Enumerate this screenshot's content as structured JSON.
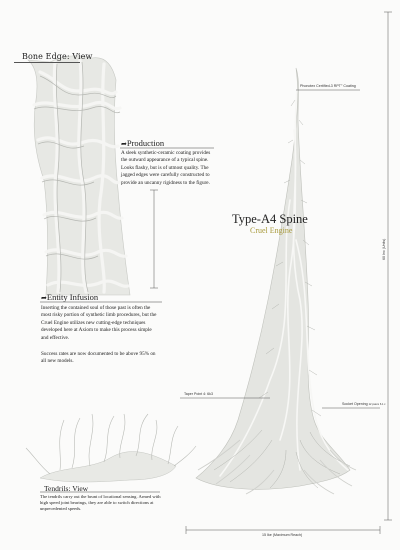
{
  "bone_edge": {
    "title": "Bone Edge: View"
  },
  "production": {
    "icon": "arrow-icon",
    "heading": "Production",
    "text": "A sleek synthetic-ceramic coating provides the outward appearance of a typical spine. Looks flashy, but is of utmost quality. The jagged edges were carefully constructed to provide an uncanny rigidness to the figure."
  },
  "entity": {
    "icon": "arrow-icon",
    "heading": "Entity Infusion",
    "text": "Inserting the contained soul of those past is often the most risky portion of synthetic limb procedures, but the Cruel Engine utilizes new cutting-edge techniques developed here at Axiom to make this process simple and effective.",
    "text2": "Success rates are now documented to be above 95% on all new models."
  },
  "product": {
    "title": "Type-A4 Spine",
    "subtitle": "Cruel Engine"
  },
  "annotations": {
    "coating": "Phonotex Certified-3 RPT° Coating",
    "taper": "Taper Point 4: 6k3",
    "socket": "Socket Opening",
    "socket_small": "12 psiem 6.1 c",
    "height": "60 Inc (Units)",
    "width": "15 Ike (Maximum Reach)"
  },
  "tendrils": {
    "title": "Tendrils: View",
    "text": "The tendrils carry out the brunt of locational sensing. Armed with high speed joint bearings, they are able to switch directions at unprecedented speeds."
  },
  "colors": {
    "accent": "#a89a3c",
    "ink": "#222222",
    "bone": "#e9e9e6",
    "bone_shadow": "#b9bbb6"
  }
}
